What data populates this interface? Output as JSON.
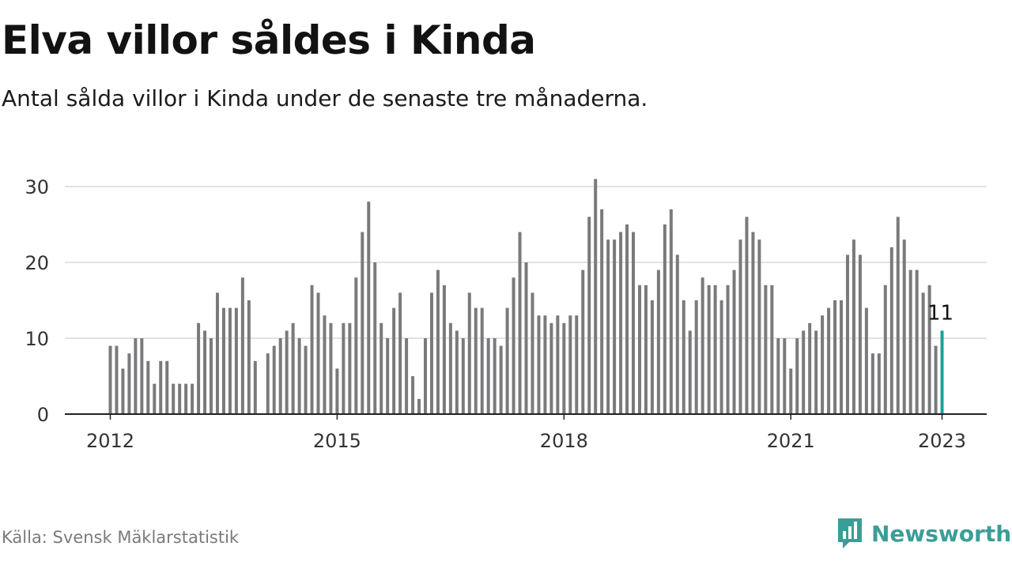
{
  "title": "Elva villor såldes i Kinda",
  "subtitle": "Antal sålda villor i Kinda under de senaste tre månaderna.",
  "source": "Källa: Svensk Mäklarstatistik",
  "brand": {
    "name": "Newsworthy",
    "icon": "bar-chart-icon"
  },
  "colors": {
    "bar": "#7a7a7c",
    "highlight": "#1aa39a",
    "grid": "#d9d9d9",
    "axis": "#222222",
    "brand": "#3a9e98"
  },
  "chart_data": {
    "type": "bar",
    "title": "Elva villor såldes i Kinda",
    "xlabel": "",
    "ylabel": "",
    "ylim": [
      0,
      31
    ],
    "yticks": [
      0,
      10,
      20,
      30
    ],
    "xticks": [
      "2012",
      "2015",
      "2018",
      "2021",
      "2023"
    ],
    "grid": true,
    "start": "2012-01",
    "series": [
      {
        "values": [
          9,
          9,
          6,
          8,
          10,
          10,
          7,
          4,
          7,
          7,
          4,
          4,
          4,
          4,
          12,
          11,
          10,
          16,
          14,
          14,
          14,
          18,
          15,
          7,
          null,
          8,
          9,
          10,
          11,
          12,
          10,
          9,
          17,
          16,
          13,
          12,
          6,
          12,
          12,
          18,
          24,
          28,
          20,
          12,
          10,
          14,
          16,
          10,
          5,
          2,
          10,
          16,
          19,
          17,
          12,
          11,
          10,
          16,
          14,
          14,
          10,
          10,
          9,
          14,
          18,
          24,
          20,
          16,
          13,
          13,
          12,
          13,
          12,
          13,
          13,
          19,
          26,
          31,
          27,
          23,
          23,
          24,
          25,
          24,
          17,
          17,
          15,
          19,
          25,
          27,
          21,
          15,
          11,
          15,
          18,
          17,
          17,
          15,
          17,
          19,
          23,
          26,
          24,
          23,
          17,
          17,
          10,
          10,
          6,
          10,
          11,
          12,
          11,
          13,
          14,
          15,
          15,
          21,
          23,
          21,
          14,
          8,
          8,
          17,
          22,
          26,
          23,
          19,
          19,
          16,
          17,
          9,
          11
        ]
      }
    ],
    "annotations": [
      {
        "label": "11",
        "value": 11,
        "month": "2023-01"
      }
    ]
  }
}
